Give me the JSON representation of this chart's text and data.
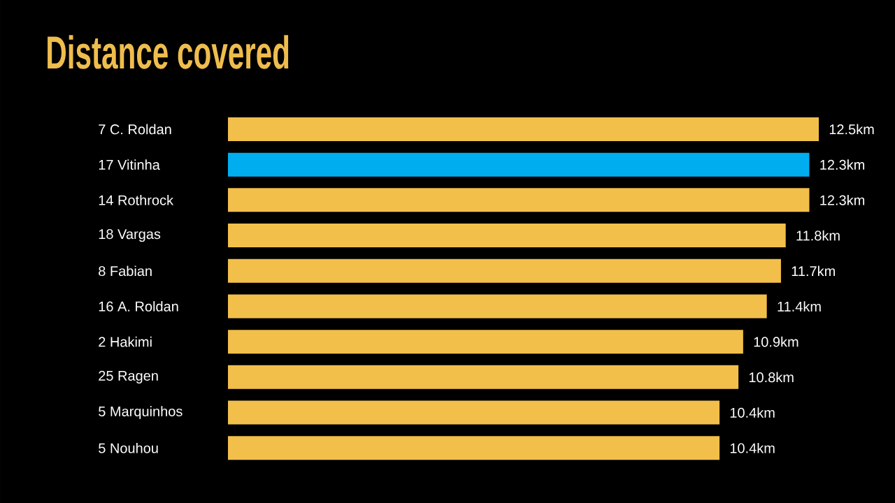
{
  "chart_data": {
    "type": "bar",
    "orientation": "horizontal",
    "title": "Distance covered",
    "categories": [
      "7 C. Roldan",
      "17 Vitinha",
      "14 Rothrock",
      "18 Vargas",
      "8 Fabian",
      "16 A. Roldan",
      "2 Hakimi",
      "25 Ragen",
      "5 Marquinhos",
      "5 Nouhou"
    ],
    "values": [
      12.5,
      12.3,
      12.3,
      11.8,
      11.7,
      11.4,
      10.9,
      10.8,
      10.4,
      10.4
    ],
    "colors": [
      "#f2bf4b",
      "#00aeef",
      "#f2bf4b",
      "#f2bf4b",
      "#f2bf4b",
      "#f2bf4b",
      "#f2bf4b",
      "#f2bf4b",
      "#f2bf4b",
      "#f2bf4b"
    ],
    "value_labels": [
      "12.5km",
      "12.3km",
      "12.3km",
      "11.8km",
      "11.7km",
      "11.4km",
      "10.9km",
      "10.8km",
      "10.4km",
      "10.4km"
    ]
  }
}
